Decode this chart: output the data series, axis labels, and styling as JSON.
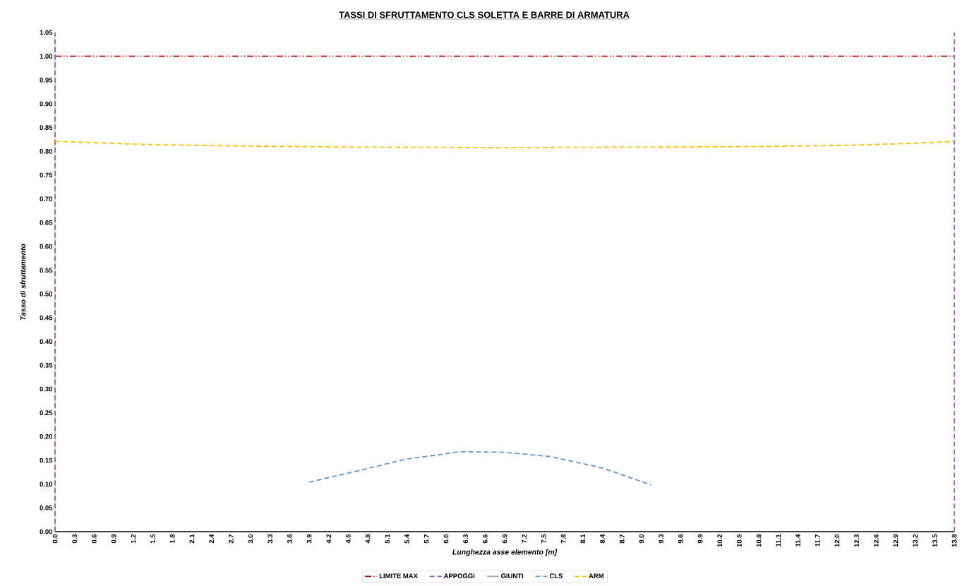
{
  "chart_data": {
    "type": "line",
    "title": "TASSI DI SFRUTTAMENTO  CLS SOLETTA E BARRE DI ARMATURA",
    "xlabel": "Lunghezza asse elemento  [m]",
    "ylabel": "Tasso di sfruttamento",
    "xlim": [
      0,
      13.8
    ],
    "xticks": [
      {
        "value": 0,
        "label": "0.0"
      },
      0.3,
      0.6,
      0.9,
      1.2,
      1.5,
      1.8,
      2.1,
      2.4,
      2.7,
      {
        "value": 3,
        "label": "3.0"
      },
      3.3,
      3.6,
      3.9,
      4.2,
      4.5,
      4.8,
      5.1,
      5.4,
      5.7,
      {
        "value": 6,
        "label": "6.0"
      },
      6.3,
      6.6,
      6.9,
      7.2,
      7.5,
      7.8,
      8.1,
      8.4,
      8.7,
      {
        "value": 9,
        "label": "9.0"
      },
      9.3,
      9.6,
      9.9,
      10.2,
      10.5,
      10.8,
      11.1,
      11.4,
      11.7,
      {
        "value": 12,
        "label": "12.0"
      },
      12.3,
      12.6,
      12.9,
      13.2,
      13.5,
      13.8
    ],
    "ylim": [
      0,
      1.05
    ],
    "yticks": [
      {
        "value": 0,
        "label": "0.00"
      },
      0.05,
      {
        "value": 0.1,
        "label": "0.10"
      },
      0.15,
      {
        "value": 0.2,
        "label": "0.20"
      },
      0.25,
      {
        "value": 0.3,
        "label": "0.30"
      },
      0.35,
      {
        "value": 0.4,
        "label": "0.40"
      },
      0.45,
      {
        "value": 0.5,
        "label": "0.50"
      },
      0.55,
      {
        "value": 0.6,
        "label": "0.60"
      },
      0.65,
      {
        "value": 0.7,
        "label": "0.70"
      },
      0.75,
      {
        "value": 0.8,
        "label": "0.80"
      },
      0.85,
      {
        "value": 0.9,
        "label": "0.90"
      },
      0.95,
      {
        "value": 1.0,
        "label": "1.00"
      },
      1.05
    ],
    "legend": "bottom",
    "marker": "none",
    "series": [
      {
        "name": "LIMITE MAX",
        "color": "#c00000",
        "line_style": "dashdotdot",
        "x": [
          0,
          13.8
        ],
        "values": [
          1.0,
          1.0
        ]
      },
      {
        "name": "APPOGGI",
        "color": "#8e5cc6",
        "line_style": "dashed",
        "x": [
          0,
          0,
          6.9,
          13.8,
          13.8
        ],
        "values": [
          0,
          1.05,
          null,
          0,
          1.05
        ]
      },
      {
        "name": "GIUNTI",
        "color": "#a6a6a6",
        "line_style": "solid"
      },
      {
        "name": "CLS",
        "color": "#5b9bd5",
        "line_style": "dashed",
        "x": [
          3.9,
          4.65,
          5.4,
          5.8,
          6.2,
          6.9,
          7.6,
          8.4,
          9.15
        ],
        "values": [
          0.104,
          0.128,
          0.153,
          0.16,
          0.168,
          0.167,
          0.158,
          0.134,
          0.098
        ]
      },
      {
        "name": "ARM",
        "color": "#ffc000",
        "line_style": "dashed",
        "x": [
          0,
          1.5,
          3.0,
          4.5,
          6.9,
          9.3,
          10.8,
          12.3,
          13.2,
          13.8
        ],
        "values": [
          0.821,
          0.814,
          0.811,
          0.809,
          0.808,
          0.809,
          0.81,
          0.813,
          0.817,
          0.821
        ]
      }
    ]
  }
}
